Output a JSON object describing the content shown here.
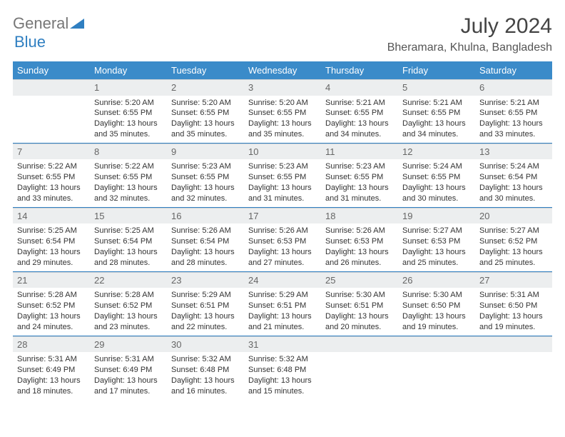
{
  "logo": {
    "line1": "General",
    "line2": "Blue"
  },
  "title": "July 2024",
  "location": "Bheramara, Khulna, Bangladesh",
  "colors": {
    "header_bg": "#3b8bc9",
    "header_fg": "#ffffff",
    "daynum_bg": "#eceeef",
    "row_border": "#2f7fc1",
    "logo_accent": "#2f7fc1",
    "text": "#333333"
  },
  "weekdays": [
    "Sunday",
    "Monday",
    "Tuesday",
    "Wednesday",
    "Thursday",
    "Friday",
    "Saturday"
  ],
  "start_offset": 1,
  "days": [
    {
      "n": 1,
      "sunrise": "5:20 AM",
      "sunset": "6:55 PM",
      "daylight": "13 hours and 35 minutes."
    },
    {
      "n": 2,
      "sunrise": "5:20 AM",
      "sunset": "6:55 PM",
      "daylight": "13 hours and 35 minutes."
    },
    {
      "n": 3,
      "sunrise": "5:20 AM",
      "sunset": "6:55 PM",
      "daylight": "13 hours and 35 minutes."
    },
    {
      "n": 4,
      "sunrise": "5:21 AM",
      "sunset": "6:55 PM",
      "daylight": "13 hours and 34 minutes."
    },
    {
      "n": 5,
      "sunrise": "5:21 AM",
      "sunset": "6:55 PM",
      "daylight": "13 hours and 34 minutes."
    },
    {
      "n": 6,
      "sunrise": "5:21 AM",
      "sunset": "6:55 PM",
      "daylight": "13 hours and 33 minutes."
    },
    {
      "n": 7,
      "sunrise": "5:22 AM",
      "sunset": "6:55 PM",
      "daylight": "13 hours and 33 minutes."
    },
    {
      "n": 8,
      "sunrise": "5:22 AM",
      "sunset": "6:55 PM",
      "daylight": "13 hours and 32 minutes."
    },
    {
      "n": 9,
      "sunrise": "5:23 AM",
      "sunset": "6:55 PM",
      "daylight": "13 hours and 32 minutes."
    },
    {
      "n": 10,
      "sunrise": "5:23 AM",
      "sunset": "6:55 PM",
      "daylight": "13 hours and 31 minutes."
    },
    {
      "n": 11,
      "sunrise": "5:23 AM",
      "sunset": "6:55 PM",
      "daylight": "13 hours and 31 minutes."
    },
    {
      "n": 12,
      "sunrise": "5:24 AM",
      "sunset": "6:55 PM",
      "daylight": "13 hours and 30 minutes."
    },
    {
      "n": 13,
      "sunrise": "5:24 AM",
      "sunset": "6:54 PM",
      "daylight": "13 hours and 30 minutes."
    },
    {
      "n": 14,
      "sunrise": "5:25 AM",
      "sunset": "6:54 PM",
      "daylight": "13 hours and 29 minutes."
    },
    {
      "n": 15,
      "sunrise": "5:25 AM",
      "sunset": "6:54 PM",
      "daylight": "13 hours and 28 minutes."
    },
    {
      "n": 16,
      "sunrise": "5:26 AM",
      "sunset": "6:54 PM",
      "daylight": "13 hours and 28 minutes."
    },
    {
      "n": 17,
      "sunrise": "5:26 AM",
      "sunset": "6:53 PM",
      "daylight": "13 hours and 27 minutes."
    },
    {
      "n": 18,
      "sunrise": "5:26 AM",
      "sunset": "6:53 PM",
      "daylight": "13 hours and 26 minutes."
    },
    {
      "n": 19,
      "sunrise": "5:27 AM",
      "sunset": "6:53 PM",
      "daylight": "13 hours and 25 minutes."
    },
    {
      "n": 20,
      "sunrise": "5:27 AM",
      "sunset": "6:52 PM",
      "daylight": "13 hours and 25 minutes."
    },
    {
      "n": 21,
      "sunrise": "5:28 AM",
      "sunset": "6:52 PM",
      "daylight": "13 hours and 24 minutes."
    },
    {
      "n": 22,
      "sunrise": "5:28 AM",
      "sunset": "6:52 PM",
      "daylight": "13 hours and 23 minutes."
    },
    {
      "n": 23,
      "sunrise": "5:29 AM",
      "sunset": "6:51 PM",
      "daylight": "13 hours and 22 minutes."
    },
    {
      "n": 24,
      "sunrise": "5:29 AM",
      "sunset": "6:51 PM",
      "daylight": "13 hours and 21 minutes."
    },
    {
      "n": 25,
      "sunrise": "5:30 AM",
      "sunset": "6:51 PM",
      "daylight": "13 hours and 20 minutes."
    },
    {
      "n": 26,
      "sunrise": "5:30 AM",
      "sunset": "6:50 PM",
      "daylight": "13 hours and 19 minutes."
    },
    {
      "n": 27,
      "sunrise": "5:31 AM",
      "sunset": "6:50 PM",
      "daylight": "13 hours and 19 minutes."
    },
    {
      "n": 28,
      "sunrise": "5:31 AM",
      "sunset": "6:49 PM",
      "daylight": "13 hours and 18 minutes."
    },
    {
      "n": 29,
      "sunrise": "5:31 AM",
      "sunset": "6:49 PM",
      "daylight": "13 hours and 17 minutes."
    },
    {
      "n": 30,
      "sunrise": "5:32 AM",
      "sunset": "6:48 PM",
      "daylight": "13 hours and 16 minutes."
    },
    {
      "n": 31,
      "sunrise": "5:32 AM",
      "sunset": "6:48 PM",
      "daylight": "13 hours and 15 minutes."
    }
  ],
  "labels": {
    "sunrise": "Sunrise:",
    "sunset": "Sunset:",
    "daylight": "Daylight:"
  }
}
